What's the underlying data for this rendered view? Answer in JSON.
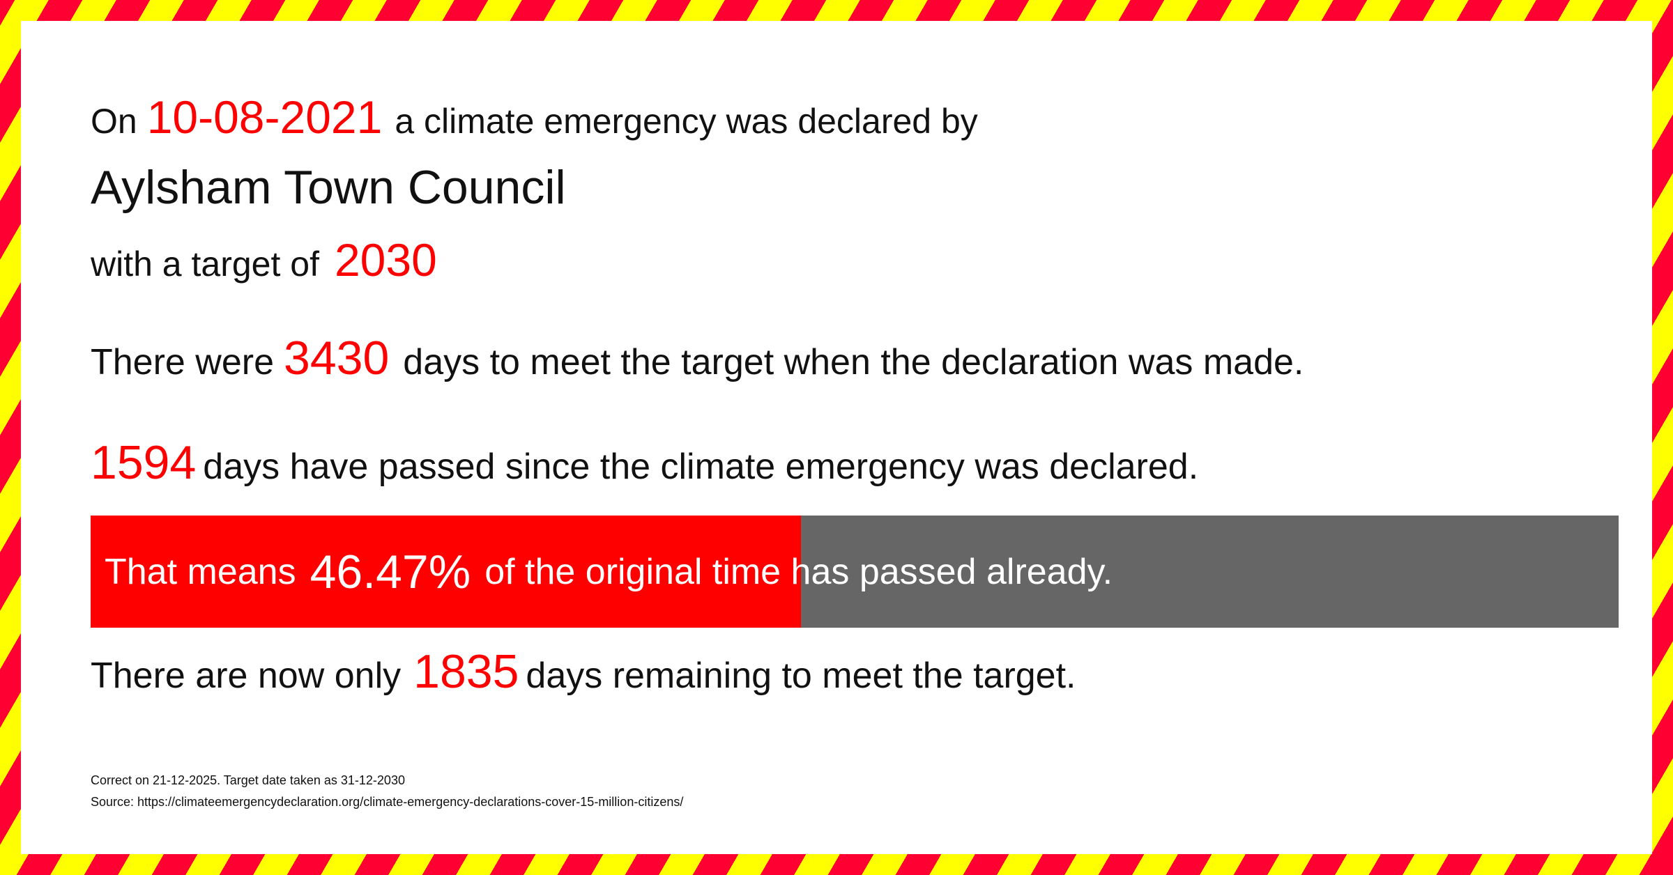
{
  "line1": {
    "prefix": "On",
    "date": "10-08-2021",
    "suffix": "a climate emergency was declared by"
  },
  "council": "Aylsham Town Council",
  "target": {
    "prefix": "with a target of",
    "year": "2030"
  },
  "total_days": {
    "prefix": "There were",
    "value": "3430",
    "suffix": "days to meet the target when the declaration was made."
  },
  "passed_days": {
    "value": "1594",
    "suffix": "days have passed since the climate emergency was declared."
  },
  "progress": {
    "prefix": "That means",
    "percent_label": "46.47%",
    "suffix": "of the original time has passed already.",
    "percent": 46.47
  },
  "remaining": {
    "prefix": "There are now only",
    "value": "1835",
    "suffix": "days remaining to meet the target."
  },
  "footer": {
    "correct": "Correct on 21-12-2025. Target date taken as 31-12-2030",
    "source": "Source: https://climateemergencydeclaration.org/climate-emergency-declarations-cover-15-million-citizens/"
  },
  "colors": {
    "accent": "#ff0000",
    "bar_bg": "#666666",
    "stripe_red": "#ff0033",
    "stripe_yellow": "#ffff00"
  }
}
